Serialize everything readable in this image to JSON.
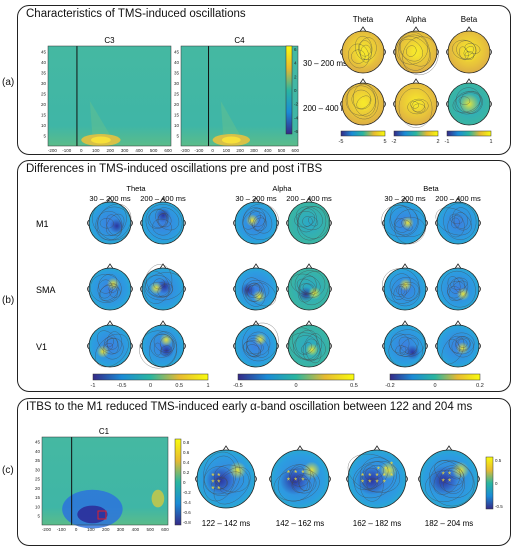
{
  "labels": {
    "a": "(a)",
    "b": "(b)",
    "c": "(c)"
  },
  "panel_a": {
    "title": "Characteristics of TMS-induced oscillations",
    "plots": [
      "C3",
      "C4"
    ],
    "y_ticks": [
      "5",
      "10",
      "15",
      "20",
      "25",
      "30",
      "35",
      "40",
      "45"
    ],
    "x_ticks": [
      "-200",
      "-100",
      "0",
      "100",
      "200",
      "300",
      "400",
      "500",
      "600"
    ],
    "colorbar_ticks": [
      "6",
      "4",
      "2",
      "0",
      "-2",
      "-4",
      "-6"
    ],
    "bands": [
      "Theta",
      "Alpha",
      "Beta"
    ],
    "rows": [
      "30 – 200 ms",
      "200 – 400 ms"
    ],
    "band_cbars": [
      {
        "min": "-5",
        "max": "5"
      },
      {
        "min": "-2",
        "max": "2"
      },
      {
        "min": "-1",
        "max": "1"
      }
    ]
  },
  "panel_b": {
    "title": "Differences in TMS-induced oscillations pre and post iTBS",
    "bands": [
      "Theta",
      "Alpha",
      "Beta"
    ],
    "windows": [
      "30 – 200 ms",
      "200 – 400 ms"
    ],
    "rows": [
      "M1",
      "SMA",
      "V1"
    ],
    "cbars": [
      [
        "-1",
        "-0.5",
        "0",
        "0.5",
        "1"
      ],
      [
        "-0.5",
        "0",
        "0.5"
      ],
      [
        "-0.2",
        "0",
        "0.2"
      ]
    ]
  },
  "panel_c": {
    "title": "ITBS to the M1 reduced TMS-induced early α-band oscillation between 122 and 204 ms",
    "plot": "C1",
    "y_ticks": [
      "5",
      "10",
      "15",
      "20",
      "25",
      "30",
      "35",
      "40",
      "45"
    ],
    "x_ticks": [
      "-200",
      "-100",
      "0",
      "100",
      "200",
      "300",
      "400",
      "500",
      "600"
    ],
    "colorbar_ticks": [
      "0.8",
      "0.6",
      "0.4",
      "0.2",
      "0",
      "-0.2",
      "-0.4",
      "-0.6",
      "-0.8"
    ],
    "windows": [
      "122 – 142 ms",
      "142 – 162 ms",
      "162 – 182 ms",
      "182 – 204 ms"
    ],
    "cbar_ticks": [
      "0.5",
      "0",
      "-0.5"
    ]
  }
}
